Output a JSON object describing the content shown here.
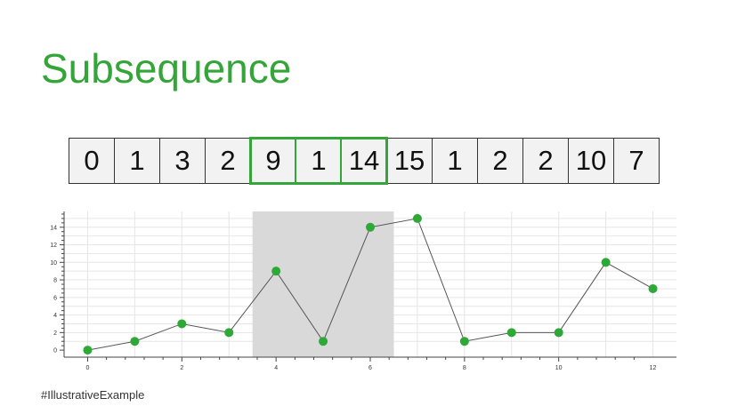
{
  "title": "Subsequence",
  "footer": "#IllustrativeExample",
  "array": {
    "values": [
      0,
      1,
      3,
      2,
      9,
      1,
      14,
      15,
      1,
      2,
      2,
      10,
      7
    ],
    "highlight_start": 4,
    "highlight_end": 6
  },
  "colors": {
    "accent": "#34a538",
    "point": "#2ea836",
    "line": "#555555",
    "shade": "#d9d9d9",
    "grid": "#e6e6e6"
  },
  "chart_data": {
    "type": "line",
    "x": [
      0,
      1,
      2,
      3,
      4,
      5,
      6,
      7,
      8,
      9,
      10,
      11,
      12
    ],
    "y": [
      0,
      1,
      3,
      2,
      9,
      1,
      14,
      15,
      1,
      2,
      2,
      10,
      7
    ],
    "title": "",
    "xlabel": "",
    "ylabel": "",
    "xlim": [
      -0.5,
      12.5
    ],
    "ylim": [
      -0.8,
      15.8
    ],
    "xticks": [
      0,
      2,
      4,
      6,
      8,
      10,
      12
    ],
    "yticks": [
      0,
      2,
      4,
      6,
      8,
      10,
      12,
      14
    ],
    "shaded_region": [
      3.5,
      6.5
    ],
    "grid": true
  }
}
